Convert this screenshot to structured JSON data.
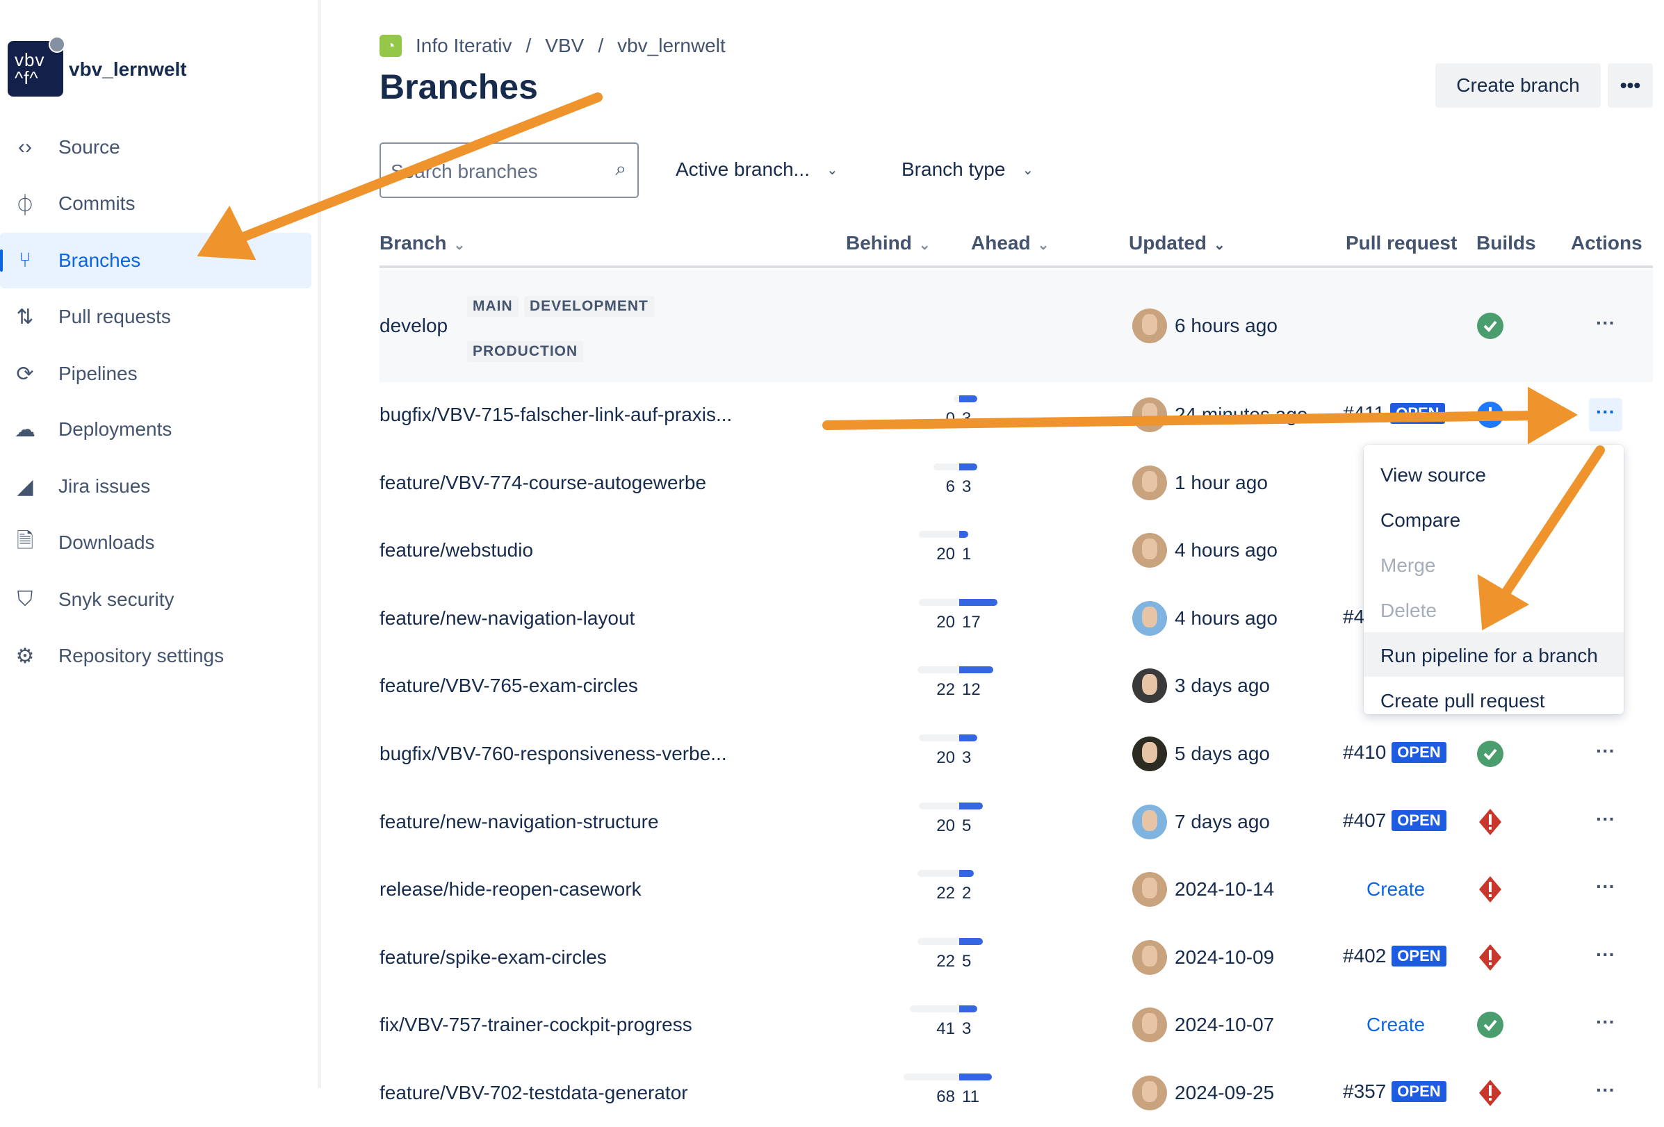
{
  "sidebar": {
    "repo_name": "vbv_lernwelt",
    "logo_text": "vbv afa",
    "items": [
      {
        "label": "Source",
        "icon": "code-icon",
        "glyph": "‹›"
      },
      {
        "label": "Commits",
        "icon": "commit-icon",
        "glyph": "⏀"
      },
      {
        "label": "Branches",
        "icon": "branch-icon",
        "glyph": "⑂",
        "active": true
      },
      {
        "label": "Pull requests",
        "icon": "pull-request-icon",
        "glyph": "⇅"
      },
      {
        "label": "Pipelines",
        "icon": "pipelines-icon",
        "glyph": "⟳"
      },
      {
        "label": "Deployments",
        "icon": "cloud-upload-icon",
        "glyph": "☁"
      },
      {
        "label": "Jira issues",
        "icon": "jira-icon",
        "glyph": "◢"
      },
      {
        "label": "Downloads",
        "icon": "file-icon",
        "glyph": "🗎"
      },
      {
        "label": "Snyk security",
        "icon": "snyk-icon",
        "glyph": "⛉"
      },
      {
        "label": "Repository settings",
        "icon": "gear-icon",
        "glyph": "⚙"
      }
    ]
  },
  "breadcrumb": [
    "Info Iterativ",
    "VBV",
    "vbv_lernwelt"
  ],
  "page_title": "Branches",
  "toolbar": {
    "create_branch": "Create branch",
    "more": "•••"
  },
  "filters": {
    "search_placeholder": "Search branches",
    "active": "Active branch...",
    "type": "Branch type"
  },
  "columns": {
    "branch": "Branch",
    "behind": "Behind",
    "ahead": "Ahead",
    "updated": "Updated",
    "pull_request": "Pull request",
    "builds": "Builds",
    "actions": "Actions"
  },
  "colors": {
    "accent": "#0c66e4",
    "success": "#4a9e6d",
    "failed": "#c9372c",
    "in_progress": "#1d7afc",
    "annotation": "#ef932d"
  },
  "rows": [
    {
      "name": "develop",
      "labels": [
        "MAIN",
        "DEVELOPMENT",
        "PRODUCTION"
      ],
      "updated": "6 hours ago",
      "avatar": "user-a",
      "build": "success"
    },
    {
      "name": "bugfix/VBV-715-falscher-link-auf-praxis...",
      "behind": 0,
      "ahead": 3,
      "updated": "24 minutes ago",
      "avatar": "user-a",
      "pr": "#411",
      "pr_status": "OPEN",
      "build": "in-progress"
    },
    {
      "name": "feature/VBV-774-course-autogewerbe",
      "behind": 6,
      "ahead": 3,
      "updated": "1 hour ago",
      "avatar": "user-a"
    },
    {
      "name": "feature/webstudio",
      "behind": 20,
      "ahead": 1,
      "updated": "4 hours ago",
      "avatar": "user-a"
    },
    {
      "name": "feature/new-navigation-layout",
      "behind": 20,
      "ahead": 17,
      "updated": "4 hours ago",
      "avatar": "user-b",
      "pr": "#4"
    },
    {
      "name": "feature/VBV-765-exam-circles",
      "behind": 22,
      "ahead": 12,
      "updated": "3 days ago",
      "avatar": "user-c"
    },
    {
      "name": "bugfix/VBV-760-responsiveness-verbe...",
      "behind": 20,
      "ahead": 3,
      "updated": "5 days ago",
      "avatar": "user-d",
      "pr": "#410",
      "pr_status": "OPEN",
      "build": "success"
    },
    {
      "name": "feature/new-navigation-structure",
      "behind": 20,
      "ahead": 5,
      "updated": "7 days ago",
      "avatar": "user-b",
      "pr": "#407",
      "pr_status": "OPEN",
      "build": "failed"
    },
    {
      "name": "release/hide-reopen-casework",
      "behind": 22,
      "ahead": 2,
      "updated": "2024-10-14",
      "avatar": "user-a",
      "pr_create": "Create",
      "build": "failed"
    },
    {
      "name": "feature/spike-exam-circles",
      "behind": 22,
      "ahead": 5,
      "updated": "2024-10-09",
      "avatar": "user-a",
      "pr": "#402",
      "pr_status": "OPEN",
      "build": "failed"
    },
    {
      "name": "fix/VBV-757-trainer-cockpit-progress",
      "behind": 41,
      "ahead": 3,
      "updated": "2024-10-07",
      "avatar": "user-a",
      "pr_create": "Create",
      "build": "success"
    },
    {
      "name": "feature/VBV-702-testdata-generator",
      "behind": 68,
      "ahead": 11,
      "updated": "2024-09-25",
      "avatar": "user-a",
      "pr": "#357",
      "pr_status": "OPEN",
      "build": "failed"
    }
  ],
  "actions_menu": [
    {
      "label": "View source"
    },
    {
      "label": "Compare"
    },
    {
      "label": "Merge",
      "disabled": true
    },
    {
      "label": "Delete",
      "disabled": true
    },
    {
      "label": "Run pipeline for a branch",
      "highlighted": true
    },
    {
      "label": "Create pull request"
    }
  ]
}
